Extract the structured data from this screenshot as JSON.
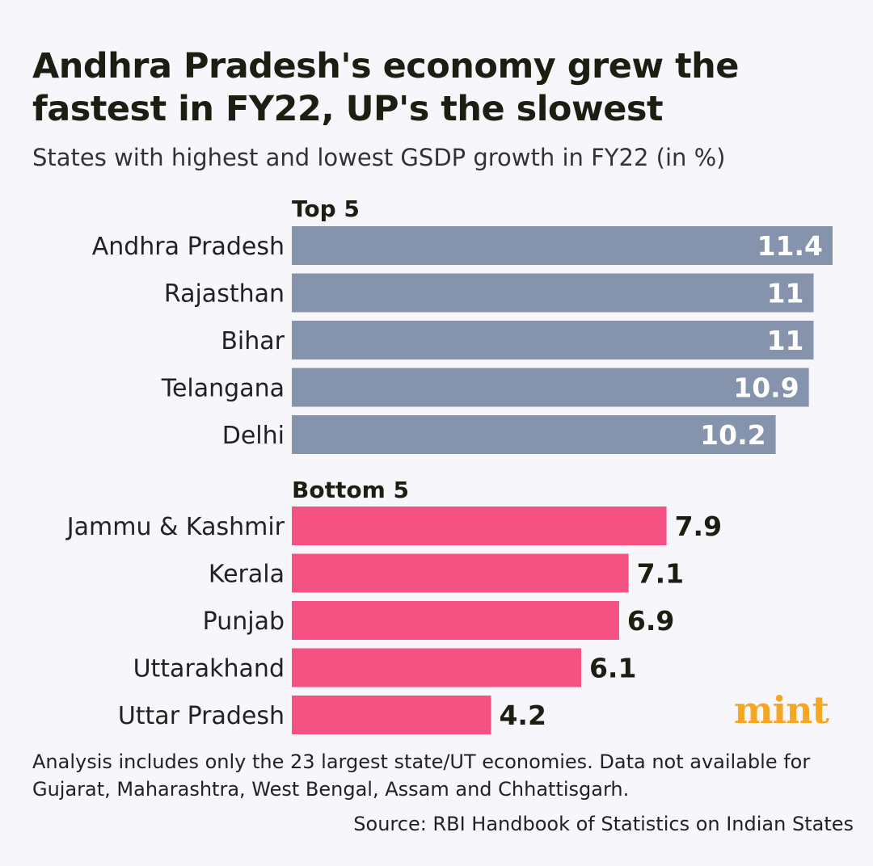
{
  "header": {
    "title": "Andhra Pradesh's economy grew the fastest in FY22, UP's the slowest",
    "subtitle": "States with highest and lowest GSDP growth in FY22 (in %)"
  },
  "chart_data": {
    "type": "bar",
    "orientation": "horizontal",
    "title": "Andhra Pradesh's economy grew the fastest in FY22, UP's the slowest",
    "subtitle": "States with highest and lowest GSDP growth in FY22 (in %)",
    "xlabel": "",
    "ylabel": "",
    "xlim": [
      0,
      11.4
    ],
    "grid": false,
    "groups": [
      {
        "name": "Top 5",
        "color": "#8593ac",
        "label_color": "#ffffff",
        "label_position": "inside",
        "categories": [
          "Andhra Pradesh",
          "Rajasthan",
          "Bihar",
          "Telangana",
          "Delhi"
        ],
        "values": [
          11.4,
          11,
          11,
          10.9,
          10.2
        ]
      },
      {
        "name": "Bottom 5",
        "color": "#f55283",
        "label_color": "#1e1d12",
        "label_position": "outside",
        "categories": [
          "Jammu & Kashmir",
          "Kerala",
          "Punjab",
          "Uttarakhand",
          "Uttar Pradesh"
        ],
        "values": [
          7.9,
          7.1,
          6.9,
          6.1,
          4.2
        ]
      }
    ]
  },
  "footer": {
    "note": "Analysis includes only the 23 largest state/UT economies. Data not available for Gujarat, Maharashtra, West Bengal, Assam and Chhattisgarh.",
    "source": "Source: RBI Handbook of Statistics on Indian States",
    "logo": "mint"
  }
}
